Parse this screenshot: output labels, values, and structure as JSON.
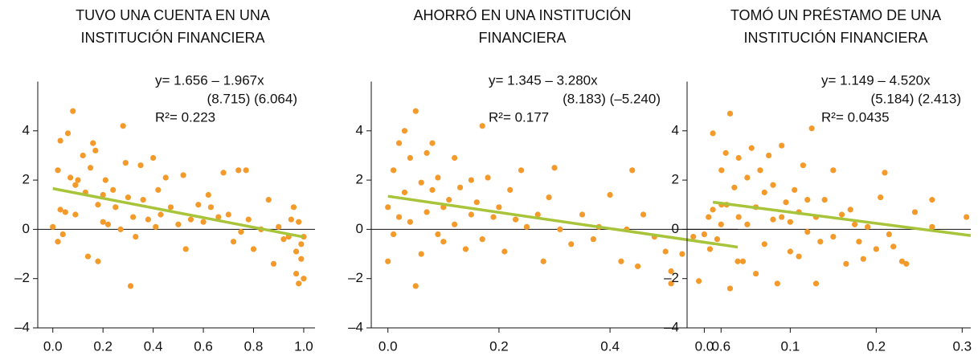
{
  "chart_data": [
    {
      "type": "scatter",
      "title": [
        "TUVO UNA CUENTA EN UNA",
        "INSTITUCIÓN FINANCIERA"
      ],
      "color": "#f39a2b",
      "x": [
        0.0,
        0.02,
        0.02,
        0.03,
        0.03,
        0.04,
        0.05,
        0.06,
        0.07,
        0.08,
        0.09,
        0.09,
        0.1,
        0.12,
        0.13,
        0.14,
        0.15,
        0.16,
        0.17,
        0.18,
        0.18,
        0.2,
        0.2,
        0.21,
        0.22,
        0.24,
        0.25,
        0.27,
        0.28,
        0.29,
        0.3,
        0.31,
        0.32,
        0.33,
        0.35,
        0.36,
        0.38,
        0.4,
        0.41,
        0.42,
        0.43,
        0.45,
        0.47,
        0.5,
        0.52,
        0.53,
        0.55,
        0.58,
        0.6,
        0.62,
        0.63,
        0.66,
        0.68,
        0.7,
        0.72,
        0.74,
        0.75,
        0.77,
        0.78,
        0.8,
        0.83,
        0.86,
        0.88,
        0.9,
        0.92,
        0.94,
        0.96,
        0.97,
        0.97,
        0.98,
        0.98,
        0.99,
        0.99,
        1.0,
        1.0,
        0.95
      ],
      "values": [
        0.1,
        -0.5,
        2.4,
        3.6,
        0.8,
        -0.2,
        0.7,
        3.9,
        2.1,
        4.8,
        1.8,
        0.6,
        2.0,
        3.0,
        1.5,
        -1.1,
        2.5,
        3.5,
        3.2,
        -1.3,
        1.0,
        0.3,
        1.4,
        2.0,
        0.2,
        1.6,
        0.9,
        0.0,
        4.2,
        2.7,
        1.3,
        -2.3,
        0.5,
        -0.3,
        2.6,
        1.2,
        0.4,
        2.9,
        0.1,
        1.6,
        0.6,
        2.1,
        0.9,
        0.2,
        2.2,
        -0.8,
        0.4,
        1.0,
        0.3,
        1.4,
        0.9,
        0.5,
        2.3,
        0.6,
        -0.5,
        2.4,
        -0.1,
        2.4,
        0.4,
        -0.8,
        0.0,
        1.2,
        -1.4,
        0.1,
        -0.4,
        -0.3,
        0.9,
        -1.8,
        -0.9,
        0.3,
        -2.2,
        -1.2,
        -0.6,
        -2.0,
        -0.3,
        0.4
      ],
      "fit": {
        "color": "#a8c43a",
        "intercept": 1.656,
        "slope": -1.967,
        "x": [
          0,
          1
        ]
      },
      "annotation": [
        "y= 1.656 – 1.967x",
        "(8.715) (6.064)",
        "R²= 0.223"
      ],
      "xlim": [
        -0.06,
        1.045
      ],
      "ylim": [
        -4,
        6
      ],
      "xticks": [
        {
          "value": 0,
          "label": "0.0"
        },
        0.2,
        0.4,
        0.6,
        0.8,
        {
          "value": 1,
          "label": "1.0"
        }
      ],
      "yticks": [
        {
          "value": -4,
          "label": "–4"
        },
        {
          "value": -2,
          "label": "–2"
        },
        0,
        2,
        4
      ]
    },
    {
      "type": "scatter",
      "title": [
        "AHORRÓ EN UNA INSTITUCIÓN",
        "FINANCIERA"
      ],
      "color": "#f39a2b",
      "x": [
        0.0,
        0.0,
        0.01,
        0.01,
        0.02,
        0.02,
        0.03,
        0.03,
        0.04,
        0.04,
        0.05,
        0.05,
        0.06,
        0.06,
        0.07,
        0.07,
        0.08,
        0.08,
        0.09,
        0.09,
        0.1,
        0.1,
        0.11,
        0.12,
        0.12,
        0.13,
        0.14,
        0.15,
        0.15,
        0.16,
        0.17,
        0.17,
        0.18,
        0.19,
        0.2,
        0.21,
        0.22,
        0.23,
        0.24,
        0.25,
        0.27,
        0.28,
        0.29,
        0.3,
        0.31,
        0.33,
        0.35,
        0.37,
        0.38,
        0.4,
        0.42,
        0.43,
        0.44,
        0.45,
        0.46,
        0.48,
        0.5,
        0.51,
        0.51,
        0.53,
        0.55,
        0.56,
        0.58,
        0.6,
        0.61,
        0.63
      ],
      "values": [
        -1.3,
        0.9,
        2.4,
        -0.2,
        3.5,
        0.5,
        4.0,
        1.5,
        0.3,
        2.9,
        -2.3,
        4.8,
        -1.0,
        1.9,
        3.1,
        0.7,
        3.5,
        1.6,
        -0.2,
        2.1,
        0.9,
        -0.5,
        1.2,
        2.9,
        0.2,
        1.7,
        -0.8,
        2.0,
        0.6,
        1.1,
        4.2,
        -0.4,
        2.1,
        0.5,
        0.9,
        -0.9,
        1.6,
        0.4,
        2.4,
        0.1,
        0.6,
        -1.3,
        1.3,
        2.5,
        0.0,
        -0.6,
        0.6,
        -0.4,
        0.1,
        1.4,
        -1.3,
        0.0,
        2.4,
        -1.5,
        0.6,
        -0.3,
        -0.9,
        -1.7,
        -2.2,
        -1.0,
        -0.3,
        -2.1,
        -0.8,
        0.2,
        1.0,
        -1.3
      ],
      "fit": {
        "color": "#a8c43a",
        "intercept": 1.345,
        "slope": -3.28,
        "x": [
          0,
          0.63
        ]
      },
      "annotation": [
        "y= 1.345 –  3.280x",
        "(8.183) (–5.240)",
        "R²= 0.177"
      ],
      "xlim": [
        -0.03,
        0.63
      ],
      "ylim": [
        -4,
        6
      ],
      "xticks": [
        {
          "value": 0,
          "label": "0.0"
        },
        0.2,
        0.4,
        0.6
      ],
      "yticks": [
        {
          "value": -4,
          "label": "–4"
        },
        {
          "value": -2,
          "label": "–2"
        },
        0,
        2,
        4
      ]
    },
    {
      "type": "scatter",
      "title": [
        "TOMÓ UN PRÉSTAMO DE UNA",
        "INSTITUCIÓN FINANCIERA"
      ],
      "color": "#f39a2b",
      "x": [
        0.0,
        0.005,
        0.01,
        0.01,
        0.015,
        0.02,
        0.02,
        0.025,
        0.03,
        0.03,
        0.035,
        0.04,
        0.04,
        0.045,
        0.05,
        0.05,
        0.055,
        0.06,
        0.06,
        0.065,
        0.07,
        0.07,
        0.075,
        0.08,
        0.08,
        0.085,
        0.09,
        0.09,
        0.095,
        0.1,
        0.1,
        0.105,
        0.11,
        0.11,
        0.115,
        0.12,
        0.12,
        0.125,
        0.13,
        0.13,
        0.135,
        0.14,
        0.15,
        0.15,
        0.16,
        0.165,
        0.17,
        0.175,
        0.18,
        0.185,
        0.19,
        0.2,
        0.205,
        0.21,
        0.215,
        0.22,
        0.23,
        0.235,
        0.245,
        0.265,
        0.265,
        0.305
      ],
      "values": [
        -0.2,
        0.5,
        3.9,
        0.8,
        -0.4,
        2.4,
        1.0,
        3.1,
        4.7,
        -2.4,
        1.7,
        0.5,
        2.9,
        -1.3,
        0.2,
        2.1,
        3.3,
        0.9,
        -1.8,
        2.4,
        1.5,
        -0.6,
        3.0,
        0.4,
        1.8,
        -2.2,
        0.5,
        3.4,
        1.1,
        -0.9,
        0.3,
        1.6,
        -1.1,
        0.7,
        2.6,
        -0.1,
        1.2,
        4.1,
        -2.2,
        0.5,
        -0.5,
        1.2,
        2.4,
        -0.3,
        0.6,
        -1.4,
        0.8,
        0.2,
        -0.5,
        -1.2,
        0.1,
        -0.8,
        1.3,
        2.3,
        -0.2,
        -0.7,
        -1.3,
        -1.4,
        0.7,
        1.2,
        0.1,
        0.5
      ],
      "fit": {
        "color": "#a8c43a",
        "intercept": 1.149,
        "slope": -4.52,
        "x": [
          0.01,
          0.31
        ]
      },
      "annotation": [
        "y= 1.149 – 4.520x",
        "(5.184) (2.413)",
        "R²= 0.0435"
      ],
      "xlim": [
        -0.02,
        0.31
      ],
      "ylim": [
        -4,
        6
      ],
      "xticks": [
        {
          "value": 0,
          "label": "0.0"
        },
        0.1,
        0.2,
        0.3
      ],
      "yticks": [
        {
          "value": -4,
          "label": "–4"
        },
        {
          "value": -2,
          "label": "–2"
        },
        0,
        2,
        4
      ]
    }
  ]
}
